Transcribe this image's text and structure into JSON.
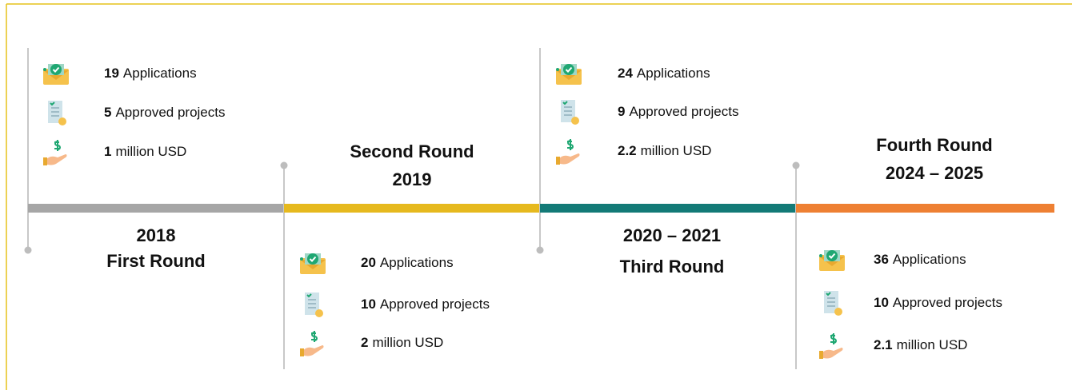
{
  "rounds": [
    {
      "heading": [
        "2018",
        "First Round"
      ],
      "color": "#a6a6a6",
      "stats": [
        {
          "value": "19",
          "label": "Applications"
        },
        {
          "value": "5",
          "label": "Approved projects"
        },
        {
          "value": "1",
          "label": "million USD"
        }
      ]
    },
    {
      "heading": [
        "Second Round",
        "2019"
      ],
      "color": "#e6b91e",
      "stats": [
        {
          "value": "20",
          "label": "Applications"
        },
        {
          "value": "10",
          "label": "Approved projects"
        },
        {
          "value": "2",
          "label": "million USD"
        }
      ]
    },
    {
      "heading": [
        "2020 – 2021",
        "Third Round"
      ],
      "color": "#137a77",
      "stats": [
        {
          "value": "24",
          "label": "Applications"
        },
        {
          "value": "9",
          "label": "Approved projects"
        },
        {
          "value": "2.2",
          "label": "million USD"
        }
      ]
    },
    {
      "heading": [
        "Fourth Round",
        "2024 – 2025"
      ],
      "color": "#ee8033",
      "stats": [
        {
          "value": "36",
          "label": "Applications"
        },
        {
          "value": "10",
          "label": "Approved projects"
        },
        {
          "value": "2.1",
          "label": "million USD"
        }
      ]
    }
  ]
}
